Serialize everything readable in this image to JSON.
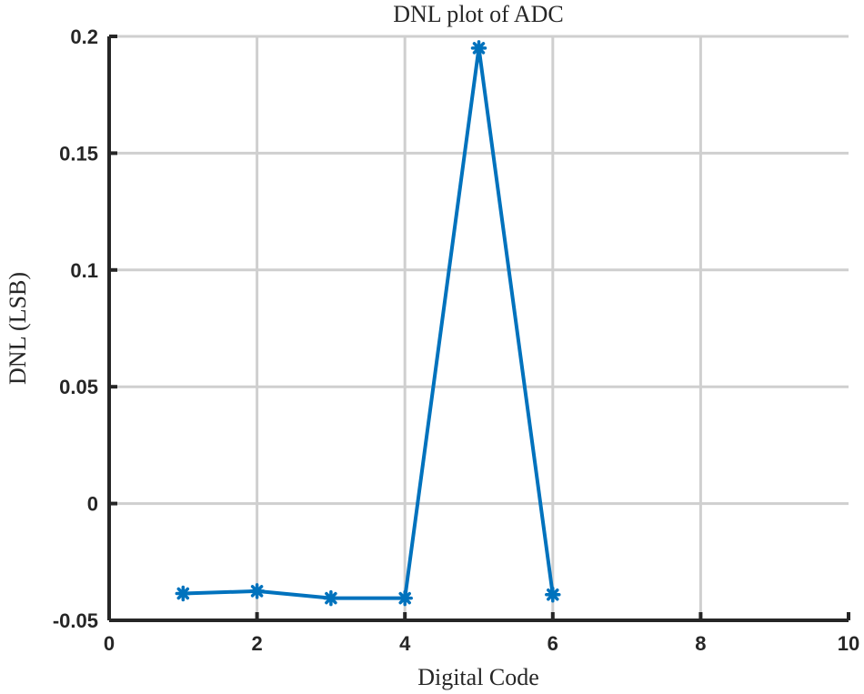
{
  "chart_data": {
    "type": "line",
    "title": "DNL plot of ADC",
    "xlabel": "Digital Code",
    "ylabel": "DNL (LSB)",
    "xlim": [
      0,
      10
    ],
    "ylim": [
      -0.05,
      0.2
    ],
    "xticks": [
      0,
      2,
      4,
      6,
      8,
      10
    ],
    "xtick_labels": [
      "0",
      "2",
      "4",
      "6",
      "8",
      "10"
    ],
    "yticks": [
      -0.05,
      0,
      0.05,
      0.1,
      0.15,
      0.2
    ],
    "ytick_labels": [
      "-0.05",
      "0",
      "0.05",
      "0.1",
      "0.15",
      "0.2"
    ],
    "grid": true,
    "marker": "asterisk",
    "color": "#0072bd",
    "series": [
      {
        "x": [
          1,
          2,
          3,
          4,
          5,
          6
        ],
        "values": [
          -0.0385,
          -0.0375,
          -0.0405,
          -0.0405,
          0.195,
          -0.039
        ]
      }
    ]
  }
}
